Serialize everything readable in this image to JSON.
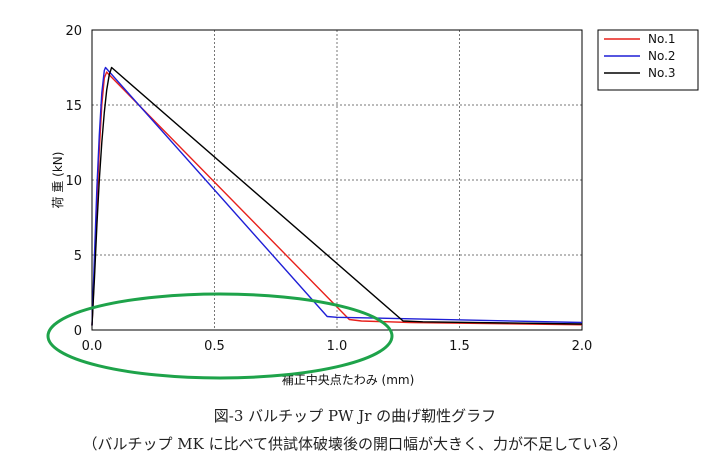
{
  "chart_data": {
    "type": "line",
    "xlabel": "補正中央点たわみ (mm)",
    "ylabel": "荷 重 (kN)",
    "xlim": [
      0,
      2.0
    ],
    "ylim": [
      0,
      20
    ],
    "xticks": [
      "0.0",
      "0.5",
      "1.0",
      "1.5",
      "2.0"
    ],
    "yticks": [
      "0",
      "5",
      "10",
      "15",
      "20"
    ],
    "grid": true,
    "legend_position": "top-right",
    "series": [
      {
        "name": "No.1",
        "color": "#e8201b",
        "x": [
          0.0,
          0.01,
          0.02,
          0.03,
          0.04,
          0.05,
          0.06,
          0.065,
          1.05,
          1.1,
          1.3,
          2.0
        ],
        "y": [
          0.3,
          4.0,
          8.5,
          12.0,
          15.0,
          16.8,
          17.2,
          17.1,
          0.7,
          0.6,
          0.5,
          0.35
        ]
      },
      {
        "name": "No.2",
        "color": "#1f1fd6",
        "x": [
          0.0,
          0.01,
          0.02,
          0.03,
          0.04,
          0.05,
          0.055,
          0.96,
          1.0,
          1.3,
          2.0
        ],
        "y": [
          0.3,
          5.0,
          9.5,
          13.0,
          15.8,
          17.3,
          17.5,
          0.9,
          0.85,
          0.75,
          0.5
        ],
        "hover": "#1f1fd6"
      },
      {
        "name": "No.3",
        "color": "#000000",
        "x": [
          0.0,
          0.01,
          0.02,
          0.03,
          0.04,
          0.05,
          0.06,
          0.07,
          0.08,
          1.27,
          1.35,
          2.0
        ],
        "y": [
          0.3,
          3.5,
          7.0,
          10.0,
          12.5,
          14.5,
          16.0,
          17.0,
          17.5,
          0.6,
          0.55,
          0.4
        ]
      }
    ]
  },
  "annotation": {
    "type": "ellipse",
    "color": "#1ea34a"
  },
  "caption": {
    "line1": "図-3 バルチップ PW Jr の曲げ靭性グラフ",
    "line2": "（バルチップ MK に比べて供試体破壊後の開口幅が大きく、力が不足している）"
  }
}
